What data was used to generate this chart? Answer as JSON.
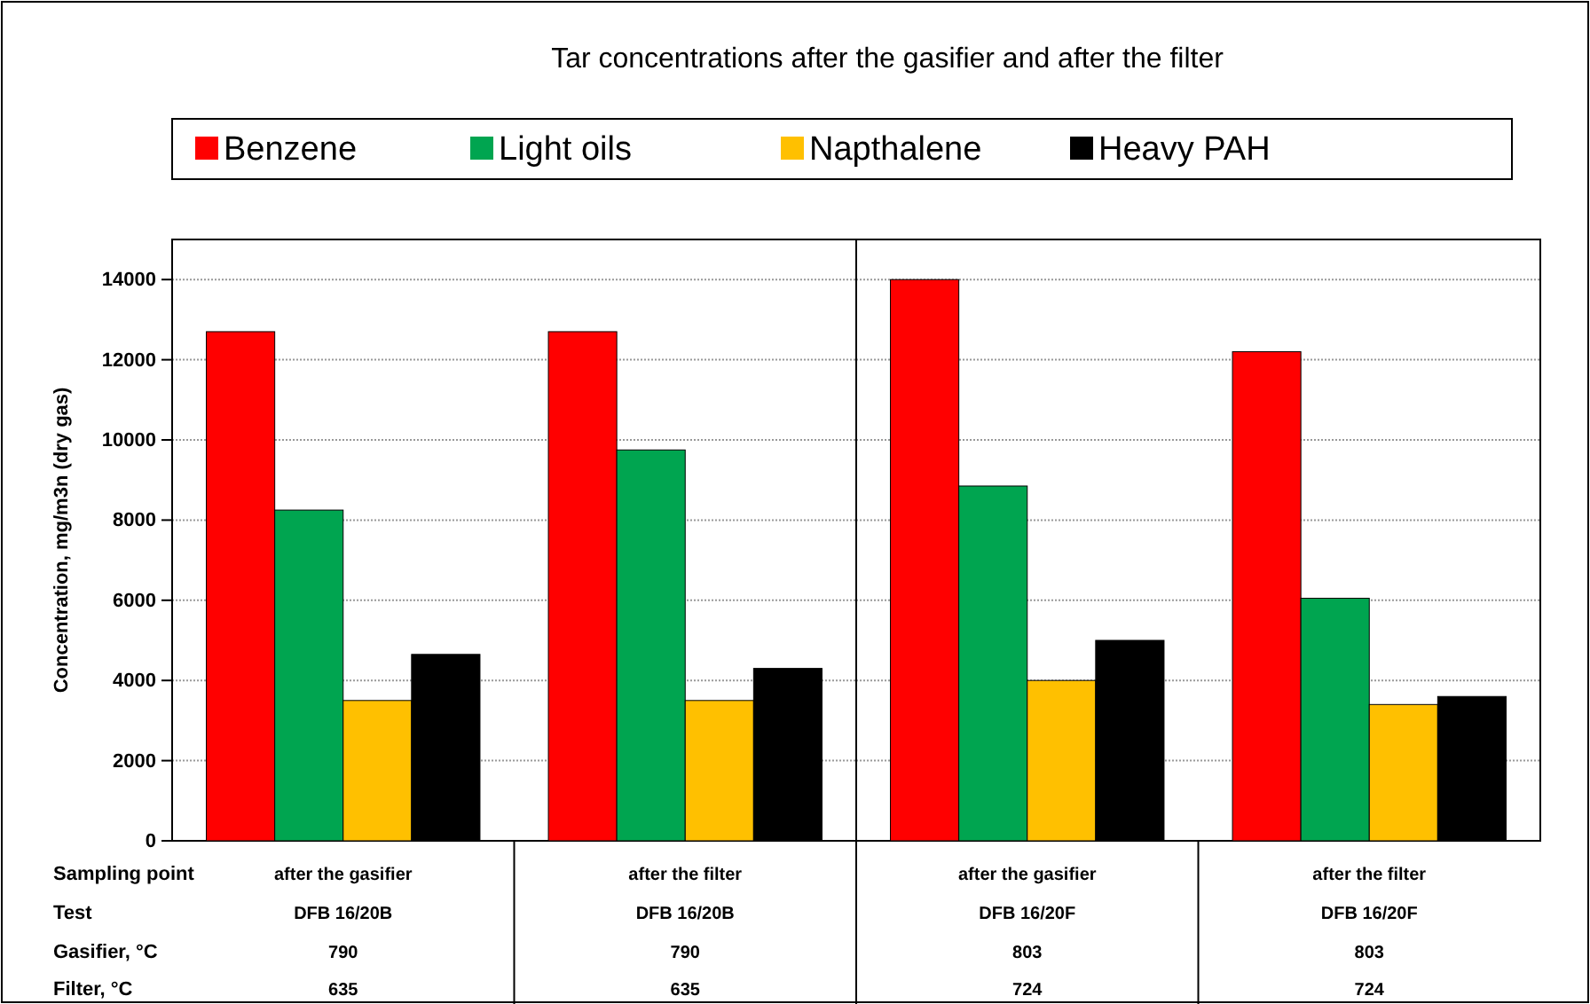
{
  "chart_data": [
    {
      "type": "bar",
      "title": "Tar concentrations after the gasifier and after the filter",
      "ylabel": "Concentration, mg/m3n (dry gas)",
      "categories": [
        "after the gasifier",
        "after the filter"
      ],
      "series": [
        {
          "name": "Benzene",
          "color": "#ff0000",
          "values": [
            12700,
            12700
          ]
        },
        {
          "name": "Light oils",
          "color": "#00a550",
          "values": [
            8250,
            9750
          ]
        },
        {
          "name": "Napthalene",
          "color": "#ffc000",
          "values": [
            3500,
            3500
          ]
        },
        {
          "name": "Heavy PAH",
          "color": "#000000",
          "values": [
            4650,
            4300
          ]
        }
      ],
      "ylim": [
        0,
        15000
      ],
      "yticks": [
        0,
        2000,
        4000,
        6000,
        8000,
        10000,
        12000,
        14000
      ],
      "grid": "y",
      "legend": "top",
      "annotations": [
        "Sampling point",
        "Test",
        "Gasifier, °C",
        "Filter, °C",
        "DFB 16/20B",
        "DFB 16/20B",
        "790",
        "790",
        "635",
        "635"
      ]
    },
    {
      "type": "bar",
      "categories": [
        "after the gasifier",
        "after the filter"
      ],
      "series": [
        {
          "color": "#ff0000",
          "values": [
            14000,
            12200
          ]
        },
        {
          "color": "#00a550",
          "values": [
            8850,
            6050
          ]
        },
        {
          "color": "#ffc000",
          "values": [
            4000,
            3400
          ]
        },
        {
          "color": "#000000",
          "values": [
            5000,
            3600
          ]
        }
      ],
      "ylim": [
        0,
        15000
      ],
      "yticks": [
        0,
        2000,
        4000,
        6000,
        8000,
        10000,
        12000,
        14000
      ],
      "grid": "y",
      "tick_labels": "x",
      "annotations": [
        "DFB 16/20F",
        "DFB 16/20F",
        "803",
        "803",
        "724",
        "724"
      ]
    }
  ]
}
